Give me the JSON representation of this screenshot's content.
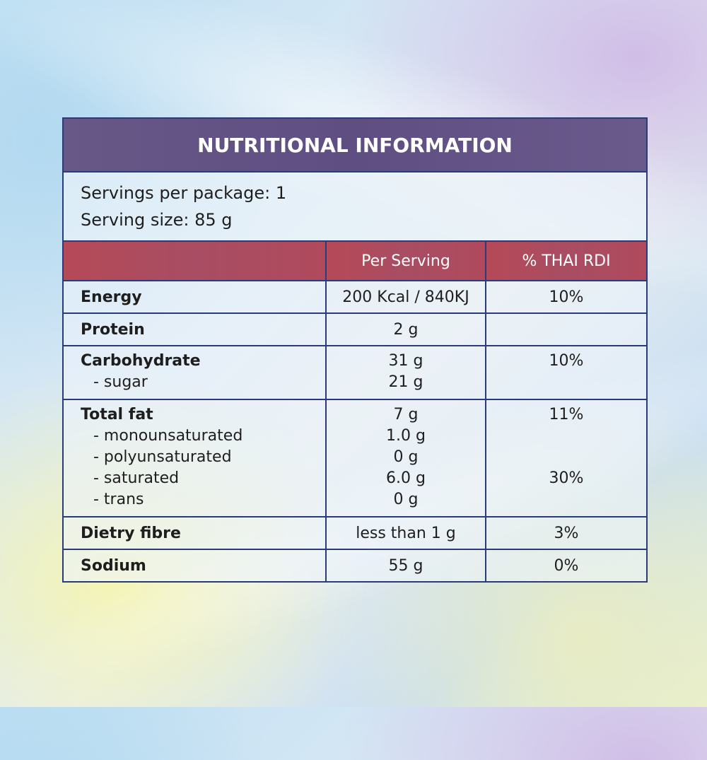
{
  "title": "NUTRITIONAL INFORMATION",
  "servings_per_package": "Servings per package: 1",
  "serving_size": "Serving size: 85 g",
  "columns": {
    "nutrient": "",
    "per_serving": "Per Serving",
    "rdi": "% THAI RDI"
  },
  "rows": {
    "energy": {
      "name": "Energy",
      "value": "200 Kcal / 840KJ",
      "rdi": "10%"
    },
    "protein": {
      "name": "Protein",
      "value": "2 g",
      "rdi": ""
    },
    "carbohydrate": {
      "name": "Carbohydrate",
      "value": "31 g",
      "rdi": "10%",
      "sugar": {
        "name": "- sugar",
        "value": "21 g"
      }
    },
    "total_fat": {
      "name": "Total fat",
      "value": "7 g",
      "rdi": "11%",
      "mono": {
        "name": "- monounsaturated",
        "value": "1.0 g"
      },
      "poly": {
        "name": "- polyunsaturated",
        "value": "0 g"
      },
      "saturated": {
        "name": "- saturated",
        "value": "6.0 g",
        "rdi": "30%"
      },
      "trans": {
        "name": "- trans",
        "value": "0 g"
      }
    },
    "fibre": {
      "name": "Dietry fibre",
      "value": "less than 1 g",
      "rdi": "3%"
    },
    "sodium": {
      "name": "Sodium",
      "value": "55 g",
      "rdi": "0%"
    }
  },
  "colors": {
    "title_bg": "#5f4e82",
    "header_bg": "#a84d63",
    "border": "#2a3c78"
  }
}
